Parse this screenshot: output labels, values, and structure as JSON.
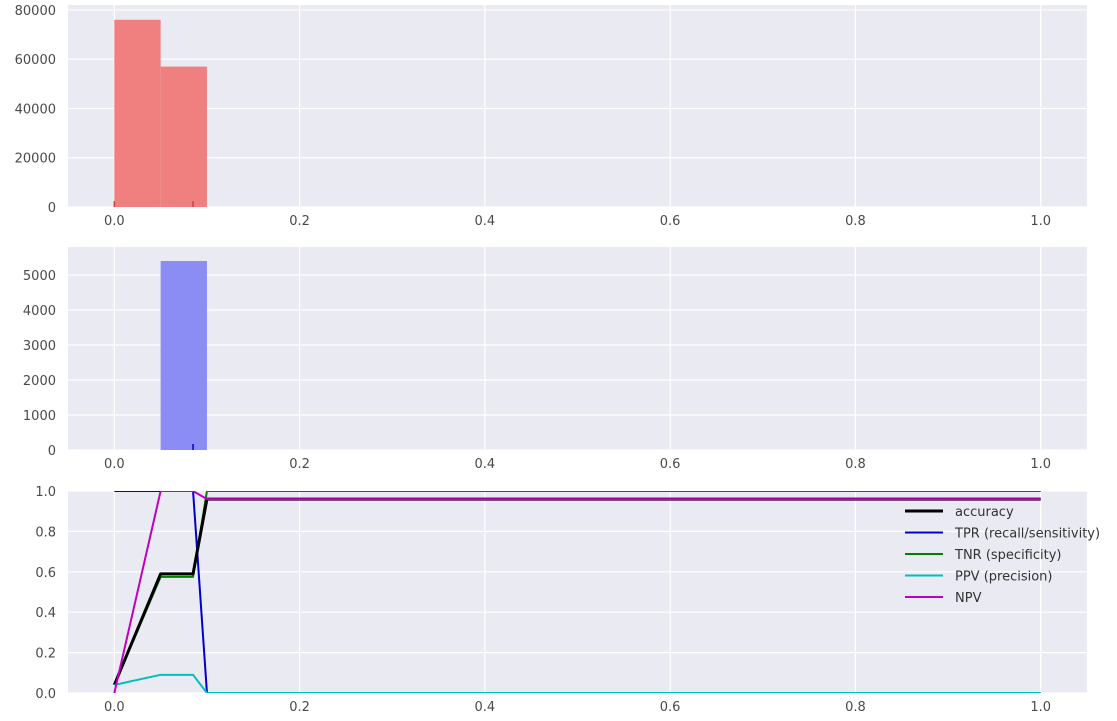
{
  "colors": {
    "axes_bg": "#eaeaf2",
    "grid": "#ffffff",
    "tick_text": "#4a4a4a"
  },
  "chart_data": [
    {
      "type": "bar",
      "subtype": "histogram",
      "color": "#f08080",
      "bins": [
        {
          "x0": 0.0,
          "x1": 0.05,
          "count": 76000
        },
        {
          "x0": 0.05,
          "x1": 0.1,
          "count": 57000
        }
      ],
      "rug": [
        0.0,
        0.085
      ],
      "rug_color": "#d04040",
      "xlim": [
        -0.05,
        1.05
      ],
      "ylim": [
        0,
        82000
      ],
      "xticks": [
        0.0,
        0.2,
        0.4,
        0.6,
        0.8,
        1.0
      ],
      "xtick_labels": [
        "0.0",
        "0.2",
        "0.4",
        "0.6",
        "0.8",
        "1.0"
      ],
      "yticks": [
        0,
        20000,
        40000,
        60000,
        80000
      ],
      "ytick_labels": [
        "0",
        "20000",
        "40000",
        "60000",
        "80000"
      ],
      "grid": true
    },
    {
      "type": "bar",
      "subtype": "histogram",
      "color": "#8c8cf5",
      "bins": [
        {
          "x0": 0.05,
          "x1": 0.1,
          "count": 5400
        }
      ],
      "rug": [
        0.085
      ],
      "rug_color": "#0000cc",
      "xlim": [
        -0.05,
        1.05
      ],
      "ylim": [
        0,
        5800
      ],
      "xticks": [
        0.0,
        0.2,
        0.4,
        0.6,
        0.8,
        1.0
      ],
      "xtick_labels": [
        "0.0",
        "0.2",
        "0.4",
        "0.6",
        "0.8",
        "1.0"
      ],
      "yticks": [
        0,
        1000,
        2000,
        3000,
        4000,
        5000
      ],
      "ytick_labels": [
        "0",
        "1000",
        "2000",
        "3000",
        "4000",
        "5000"
      ],
      "grid": true
    },
    {
      "type": "line",
      "xlim": [
        -0.05,
        1.05
      ],
      "ylim": [
        0,
        1.0
      ],
      "xticks": [
        0.0,
        0.2,
        0.4,
        0.6,
        0.8,
        1.0
      ],
      "xtick_labels": [
        "0.0",
        "0.2",
        "0.4",
        "0.6",
        "0.8",
        "1.0"
      ],
      "yticks": [
        0.0,
        0.2,
        0.4,
        0.6,
        0.8,
        1.0
      ],
      "ytick_labels": [
        "0.0",
        "0.2",
        "0.4",
        "0.6",
        "0.8",
        "1.0"
      ],
      "grid": true,
      "legend_position": "right",
      "series": [
        {
          "name": "TPR (recall/sensitivity)",
          "color": "#0000cc",
          "x": [
            0.0,
            0.05,
            0.085,
            0.1,
            1.0
          ],
          "y": [
            1.0,
            1.0,
            1.0,
            0.0,
            0.0
          ]
        },
        {
          "name": "TNR (specificity)",
          "color": "#008000",
          "x": [
            0.0,
            0.05,
            0.085,
            0.1,
            1.0
          ],
          "y": [
            0.04,
            0.575,
            0.575,
            1.0,
            1.0
          ]
        },
        {
          "name": "accuracy",
          "color": "#000000",
          "x": [
            0.0,
            0.05,
            0.085,
            0.1,
            1.0
          ],
          "y": [
            0.04,
            0.59,
            0.59,
            0.96,
            0.96
          ]
        },
        {
          "name": "PPV (precision)",
          "color": "#00bfbf",
          "x": [
            0.0,
            0.05,
            0.085,
            0.1,
            1.0
          ],
          "y": [
            0.04,
            0.09,
            0.09,
            0.0,
            0.0
          ]
        },
        {
          "name": "NPV",
          "color": "#bf00bf",
          "x": [
            0.0,
            0.05,
            0.085,
            0.1,
            1.0
          ],
          "y": [
            0.0,
            1.0,
            1.0,
            0.96,
            0.96
          ]
        }
      ],
      "legend_order": [
        "accuracy",
        "TPR (recall/sensitivity)",
        "TNR (specificity)",
        "PPV (precision)",
        "NPV"
      ]
    }
  ]
}
